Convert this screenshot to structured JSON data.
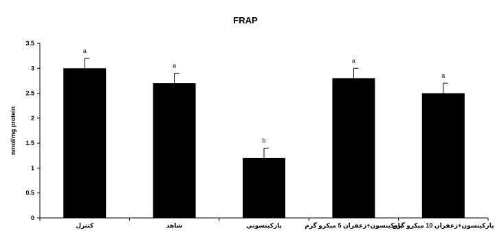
{
  "chart_data": {
    "type": "bar",
    "title": "FRAP",
    "xlabel": "",
    "ylabel": "nmol/mg protein",
    "ylim": [
      0,
      3.5
    ],
    "yticks": [
      "0",
      "0.5",
      "1",
      "1.5",
      "2",
      "2.5",
      "3",
      "3.5"
    ],
    "grid": false,
    "categories": [
      "كنترل",
      "شاهد",
      "پاركينسوني",
      "پاركينسون+زعفران 5 ميكرو گرم",
      "پاركينسون+زعفران 10 ميكرو گرم"
    ],
    "values": [
      3.0,
      2.7,
      1.2,
      2.8,
      2.5
    ],
    "errors": [
      0.2,
      0.2,
      0.2,
      0.2,
      0.2
    ],
    "significance_labels": [
      "a",
      "a",
      "b",
      "a",
      "a"
    ],
    "bar_color": "#000000"
  }
}
